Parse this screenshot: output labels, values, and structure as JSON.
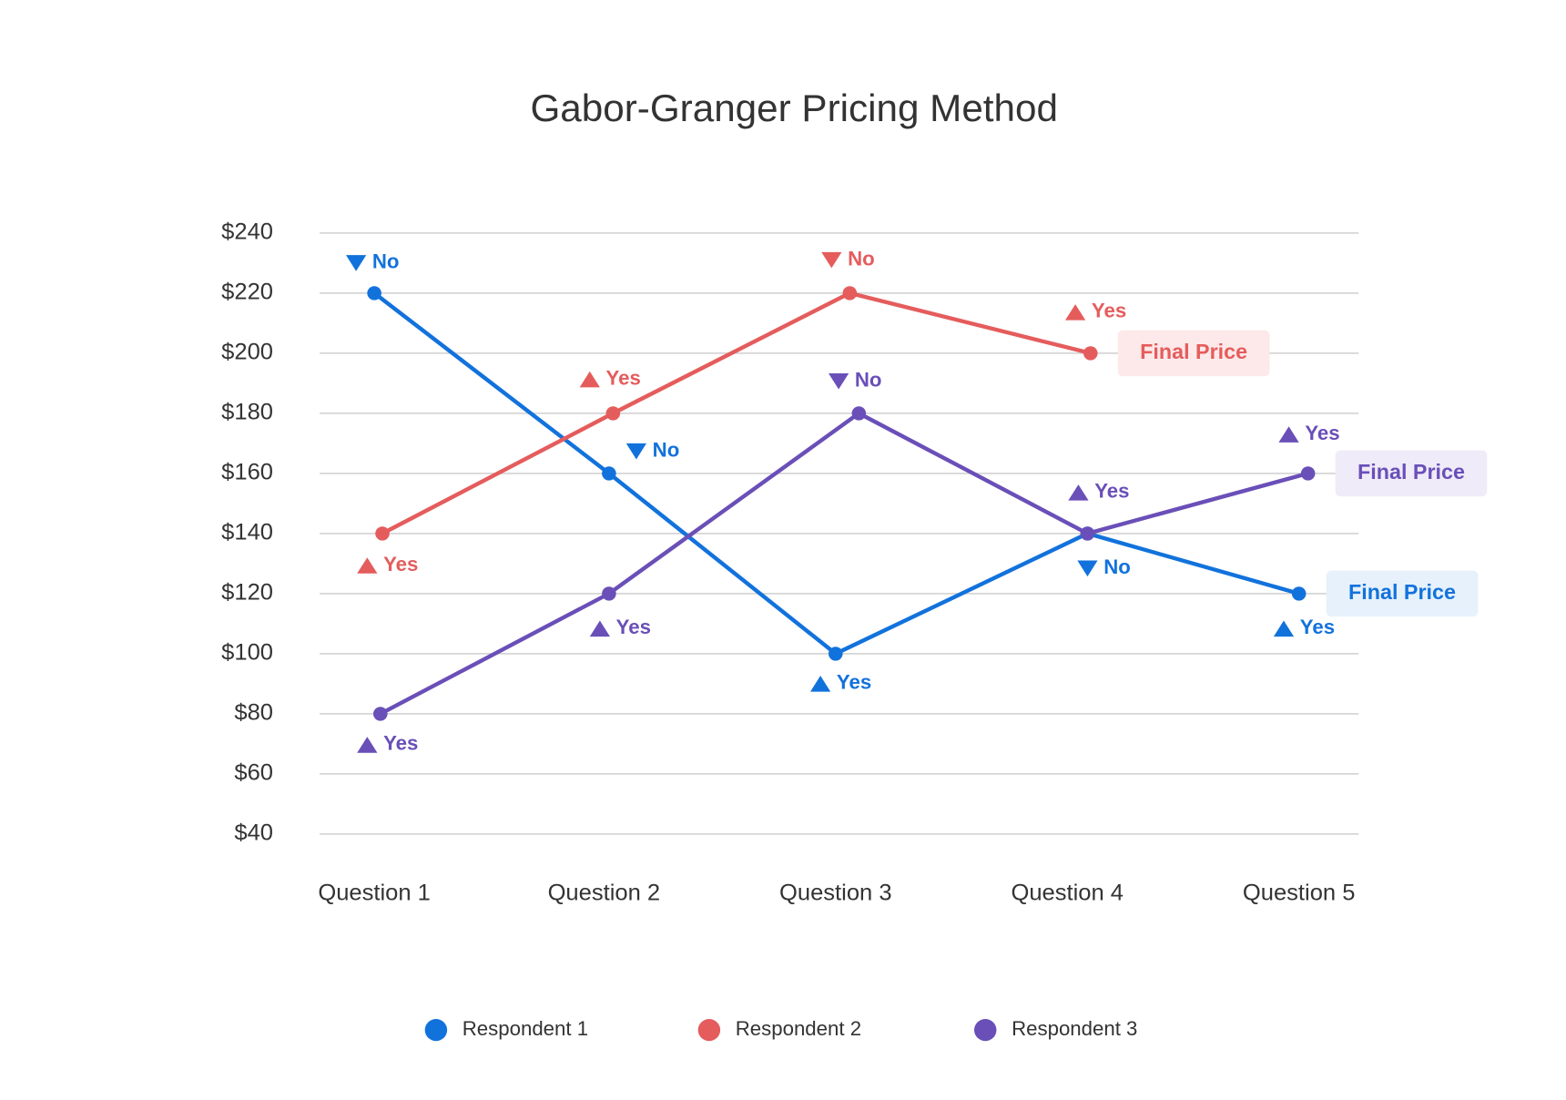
{
  "chart_data": {
    "type": "line",
    "title": "Gabor-Granger Pricing Method",
    "categories": [
      "Question 1",
      "Question 2",
      "Question 3",
      "Question 4",
      "Question 5"
    ],
    "ylim": [
      40,
      240
    ],
    "yticks": [
      {
        "value": 40,
        "label": "$40"
      },
      {
        "value": 60,
        "label": "$60"
      },
      {
        "value": 80,
        "label": "$80"
      },
      {
        "value": 100,
        "label": "$100"
      },
      {
        "value": 120,
        "label": "$120"
      },
      {
        "value": 140,
        "label": "$140"
      },
      {
        "value": 160,
        "label": "$160"
      },
      {
        "value": 180,
        "label": "$180"
      },
      {
        "value": 200,
        "label": "$200"
      },
      {
        "value": 220,
        "label": "$220"
      },
      {
        "value": 240,
        "label": "$240"
      }
    ],
    "grid": true,
    "series": [
      {
        "name": "Respondent 1",
        "color": "#1272dc",
        "values": [
          220,
          160,
          100,
          140,
          120
        ],
        "answers": [
          "No",
          "No",
          "Yes",
          "No",
          "Yes"
        ],
        "final_label": "Final Price"
      },
      {
        "name": "Respondent 2",
        "color": "#e55c5c",
        "values": [
          140,
          180,
          220,
          200,
          null
        ],
        "answers": [
          "Yes",
          "Yes",
          "No",
          "Yes",
          null
        ],
        "final_label": "Final Price"
      },
      {
        "name": "Respondent 3",
        "color": "#6a4fb8",
        "values": [
          80,
          120,
          180,
          140,
          160
        ],
        "answers": [
          "Yes",
          "Yes",
          "No",
          "Yes",
          "Yes"
        ],
        "final_label": "Final Price"
      }
    ]
  }
}
